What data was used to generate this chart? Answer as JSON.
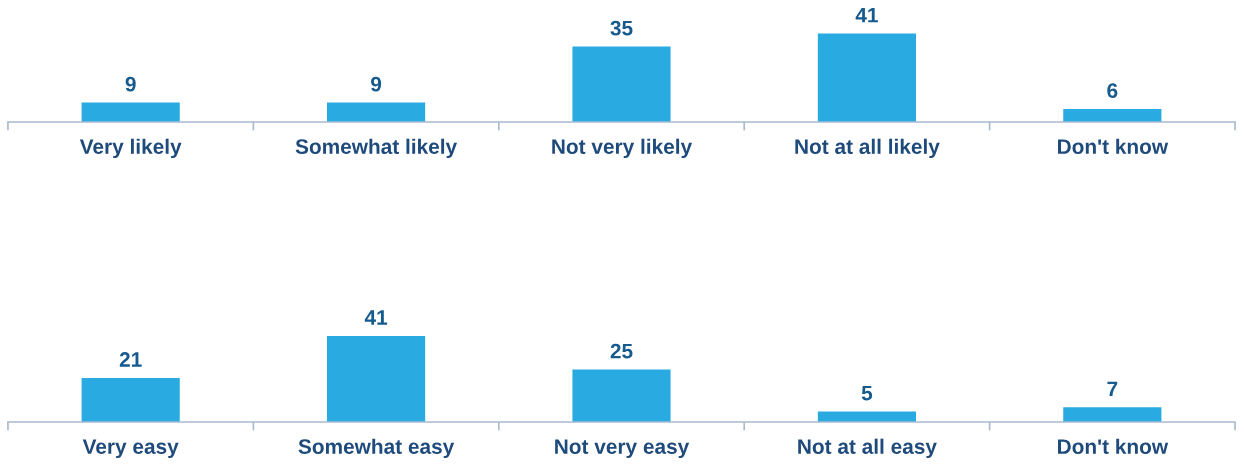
{
  "chart_data": [
    {
      "type": "bar",
      "categories": [
        "Very likely",
        "Somewhat likely",
        "Not very likely",
        "Not at all likely",
        "Don't know"
      ],
      "values": [
        9,
        9,
        35,
        41,
        6
      ],
      "color": "#29abe2",
      "data_labels": true,
      "tick_labels": "x"
    },
    {
      "type": "bar",
      "categories": [
        "Very easy",
        "Somewhat easy",
        "Not very easy",
        "Not at all easy",
        "Don't know"
      ],
      "values": [
        21,
        41,
        25,
        5,
        7
      ],
      "color": "#29abe2",
      "data_labels": true,
      "tick_labels": "x"
    }
  ]
}
